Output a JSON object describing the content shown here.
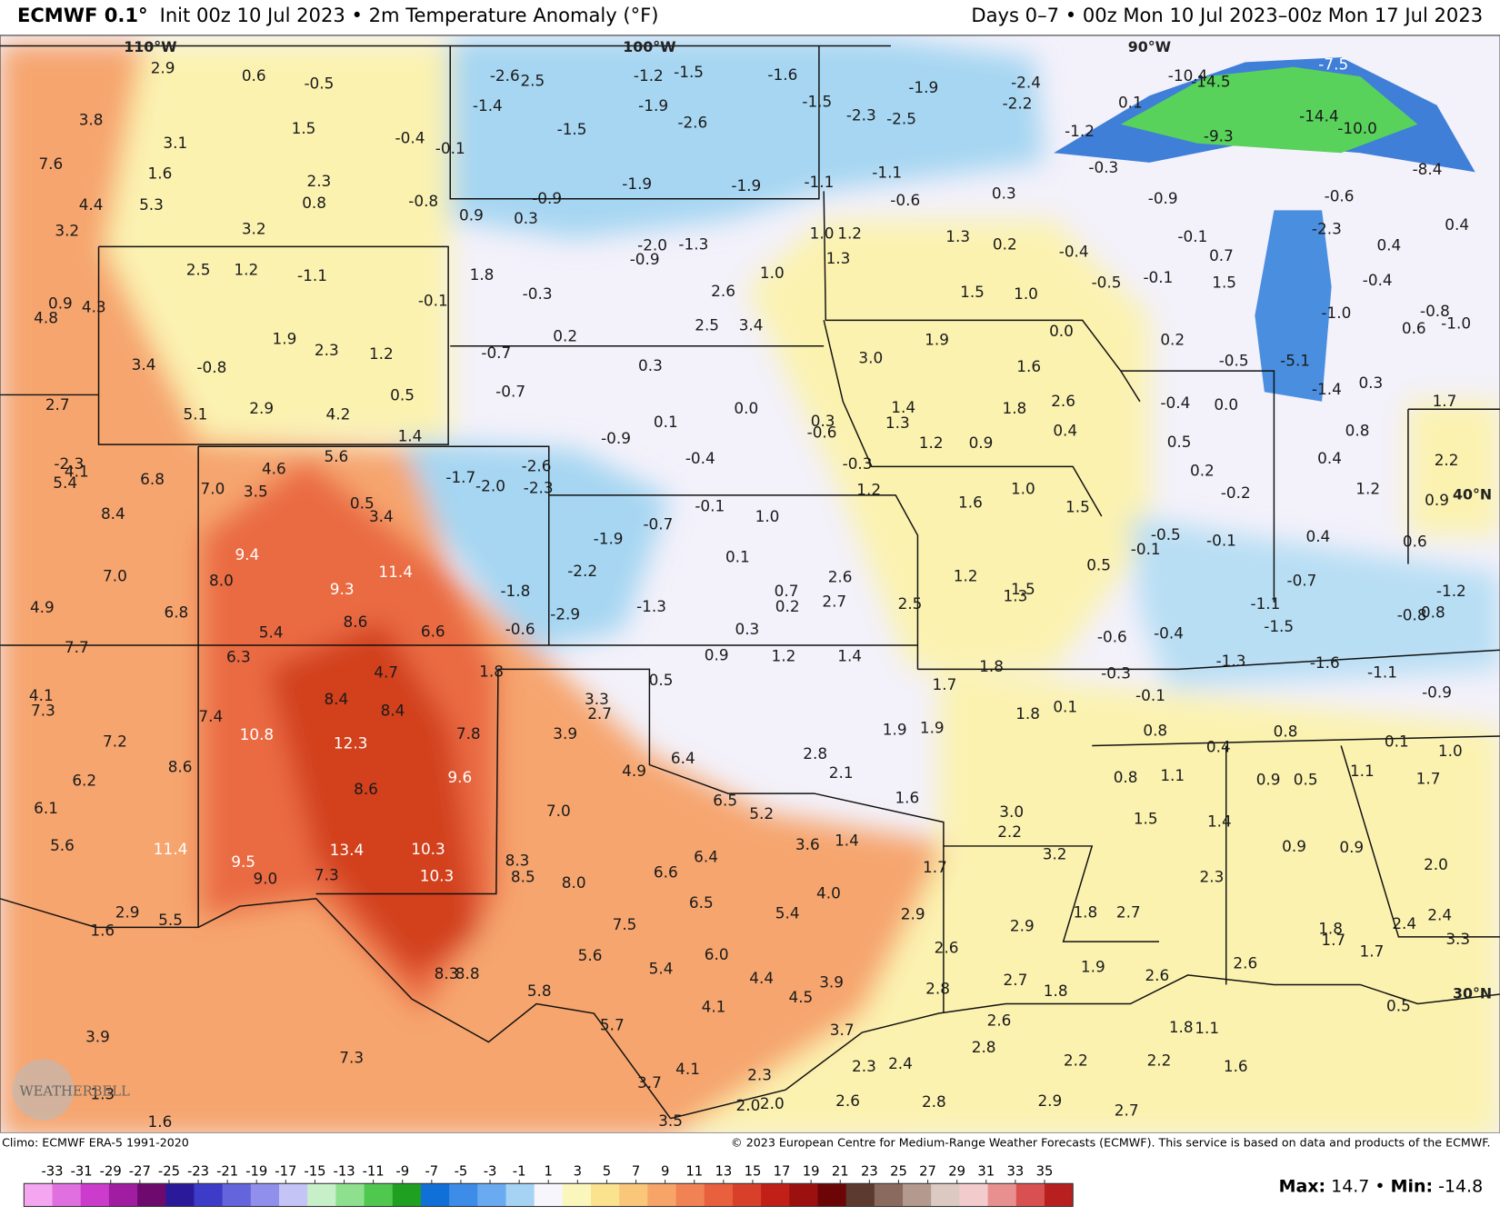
{
  "header": {
    "model": "ECMWF 0.1°",
    "description": "Init 00z 10 Jul 2023 • 2m Temperature Anomaly (°F)",
    "period": "Days 0–7 • 00z Mon 10 Jul 2023–00z Mon 17 Jul 2023"
  },
  "map": {
    "longitude_labels": [
      "110°W",
      "100°W",
      "90°W"
    ],
    "latitude_labels": [
      "40°N",
      "30°N"
    ],
    "logo": "WEATHERBELL",
    "point_labels": [
      "2.9",
      "0.6",
      "-0.5",
      "3.8",
      "3.1",
      "1.5",
      "-0.4",
      "-0.1",
      "7.6",
      "1.6",
      "2.3",
      "0.8",
      "-0.8",
      "4.4",
      "5.3",
      "3.2",
      "3.2",
      "2.5",
      "1.2",
      "-1.1",
      "-0.1",
      "0.9",
      "4.3",
      "4.8",
      "1.9",
      "2.3",
      "1.2",
      "3.4",
      "-0.8",
      "0.5",
      "2.7",
      "5.1",
      "2.9",
      "4.2",
      "1.4",
      "-2.3",
      "4.1",
      "5.4",
      "6.8",
      "4.6",
      "5.6",
      "7.0",
      "3.5",
      "0.5",
      "3.4",
      "8.4",
      "9.4",
      "11.4",
      "7.0",
      "8.0",
      "9.3",
      "4.9",
      "6.8",
      "8.6",
      "5.4",
      "6.6",
      "7.7",
      "6.3",
      "4.7",
      "4.1",
      "7.3",
      "8.4",
      "8.4",
      "7.4",
      "10.8",
      "12.3",
      "7.2",
      "7.8",
      "8.6",
      "9.6",
      "6.2",
      "8.6",
      "6.1",
      "5.6",
      "11.4",
      "9.5",
      "13.4",
      "10.3",
      "9.0",
      "7.3",
      "10.3",
      "2.9",
      "5.5",
      "1.6",
      "8.3",
      "8.8",
      "3.9",
      "7.3",
      "1.3",
      "1.6",
      "-2.6",
      "2.5",
      "-1.2",
      "-1.5",
      "-1.6",
      "-1.4",
      "-1.9",
      "-1.5",
      "-2.3",
      "-2.5",
      "-1.9",
      "-2.4",
      "-2.2",
      "-1.5",
      "-2.6",
      "-1.9",
      "-1.9",
      "-1.1",
      "-1.1",
      "-0.6",
      "0.3",
      "0.9",
      "0.3",
      "-0.9",
      "-2.0",
      "-1.3",
      "-0.9",
      "1.0",
      "1.2",
      "1.3",
      "1.3",
      "0.2",
      "1.8",
      "-0.3",
      "1.0",
      "2.6",
      "2.5",
      "3.4",
      "1.5",
      "1.0",
      "0.2",
      "-0.7",
      "0.3",
      "3.0",
      "1.9",
      "0.0",
      "1.6",
      "-0.7",
      "0.1",
      "0.0",
      "-0.9",
      "0.3",
      "-0.6",
      "1.4",
      "1.3",
      "1.8",
      "2.6",
      "0.4",
      "1.2",
      "0.9",
      "-0.4",
      "-0.3",
      "-1.7",
      "-2.0",
      "-2.6",
      "-2.3",
      "1.2",
      "1.6",
      "1.0",
      "1.5",
      "-0.1",
      "1.0",
      "-0.7",
      "-1.9",
      "0.1",
      "-2.2",
      "2.6",
      "0.7",
      "0.2",
      "2.7",
      "2.5",
      "1.2",
      "1.3",
      "1.5",
      "-1.8",
      "-2.9",
      "-1.3",
      "-0.6",
      "0.3",
      "0.9",
      "1.2",
      "1.4",
      "1.8",
      "0.5",
      "1.7",
      "1.8",
      "1.8",
      "0.1",
      "3.3",
      "2.7",
      "3.9",
      "1.9",
      "1.9",
      "4.9",
      "6.4",
      "2.8",
      "2.1",
      "6.5",
      "5.2",
      "1.6",
      "7.0",
      "3.0",
      "2.2",
      "3.6",
      "1.4",
      "6.4",
      "8.3",
      "8.5",
      "8.0",
      "6.6",
      "1.7",
      "3.2",
      "4.0",
      "6.5",
      "5.4",
      "2.9",
      "7.5",
      "2.9",
      "6.0",
      "2.6",
      "5.6",
      "5.4",
      "4.4",
      "3.9",
      "4.5",
      "2.8",
      "2.7",
      "1.8",
      "5.8",
      "4.1",
      "5.7",
      "3.7",
      "2.6",
      "2.8",
      "2.3",
      "2.4",
      "2.2",
      "4.1",
      "2.3",
      "3.7",
      "2.6",
      "2.8",
      "2.9",
      "2.0",
      "2.0",
      "3.5",
      "2.7",
      "-10.4",
      "-14.5",
      "-7.5",
      "-14.4",
      "-10.0",
      "0.1",
      "-1.2",
      "-9.3",
      "-0.3",
      "-0.9",
      "-8.4",
      "-0.6",
      "-2.3",
      "0.4",
      "-0.1",
      "0.4",
      "-0.4",
      "0.7",
      "-0.5",
      "-0.1",
      "1.5",
      "-0.4",
      "-0.8",
      "0.6",
      "-1.0",
      "-1.0",
      "0.2",
      "-0.5",
      "-5.1",
      "-1.4",
      "0.3",
      "1.7",
      "-0.4",
      "0.0",
      "0.8",
      "0.5",
      "0.4",
      "2.2",
      "0.2",
      "-0.2",
      "1.2",
      "0.9",
      "-0.5",
      "-0.1",
      "0.4",
      "0.6",
      "-0.1",
      "0.5",
      "-0.7",
      "-1.2",
      "-1.1",
      "-1.5",
      "-0.8",
      "0.8",
      "-0.6",
      "-0.4",
      "-1.3",
      "-1.6",
      "-1.1",
      "-0.3",
      "-0.1",
      "-0.9",
      "0.8",
      "0.8",
      "0.4",
      "0.1",
      "1.0",
      "0.8",
      "1.1",
      "0.9",
      "0.5",
      "1.1",
      "1.7",
      "1.5",
      "1.4",
      "0.9",
      "0.9",
      "2.0",
      "2.3",
      "1.8",
      "2.7",
      "2.4",
      "2.4",
      "1.8",
      "1.7",
      "3.3",
      "1.7",
      "2.6",
      "1.9",
      "2.6",
      "0.5",
      "1.8",
      "1.1",
      "1.6",
      "2.2"
    ]
  },
  "footer": {
    "climo": "Climo: ECMWF ERA-5 1991-2020",
    "copyright": "© 2023 European Centre for Medium-Range Weather Forecasts (ECMWF). This service is based on data and products of the ECMWF."
  },
  "colorbar": {
    "ticks": [
      -33,
      -31,
      -29,
      -27,
      -25,
      -23,
      -21,
      -19,
      -17,
      -15,
      -13,
      -11,
      -9,
      -7,
      -5,
      -3,
      -1,
      1,
      3,
      5,
      7,
      9,
      11,
      13,
      15,
      17,
      19,
      21,
      23,
      25,
      27,
      29,
      31,
      33,
      35
    ],
    "colors": [
      "#f4a6f0",
      "#e070e0",
      "#cc3ccc",
      "#a01ca0",
      "#6e0a6e",
      "#2a1a9a",
      "#3c3cc8",
      "#6464dc",
      "#9090ec",
      "#c4c4f6",
      "#c8f0c8",
      "#8ee08e",
      "#50c850",
      "#20a020",
      "#1070d8",
      "#3c8ce8",
      "#6aaaf0",
      "#a6d2f4",
      "#f6f6fc",
      "#fbf6bc",
      "#fbe28e",
      "#f9c67a",
      "#f6a468",
      "#f08254",
      "#e8603e",
      "#d8402c",
      "#c02018",
      "#9c1010",
      "#6c0606",
      "#5c3a30",
      "#8a6a5e",
      "#b49a8e",
      "#dccac2",
      "#f2cccc",
      "#e89090",
      "#d85050",
      "#b82020"
    ]
  },
  "stats": {
    "max_label": "Max:",
    "max": "14.7",
    "separator": "•",
    "min_label": "Min:",
    "min": "-14.8"
  }
}
